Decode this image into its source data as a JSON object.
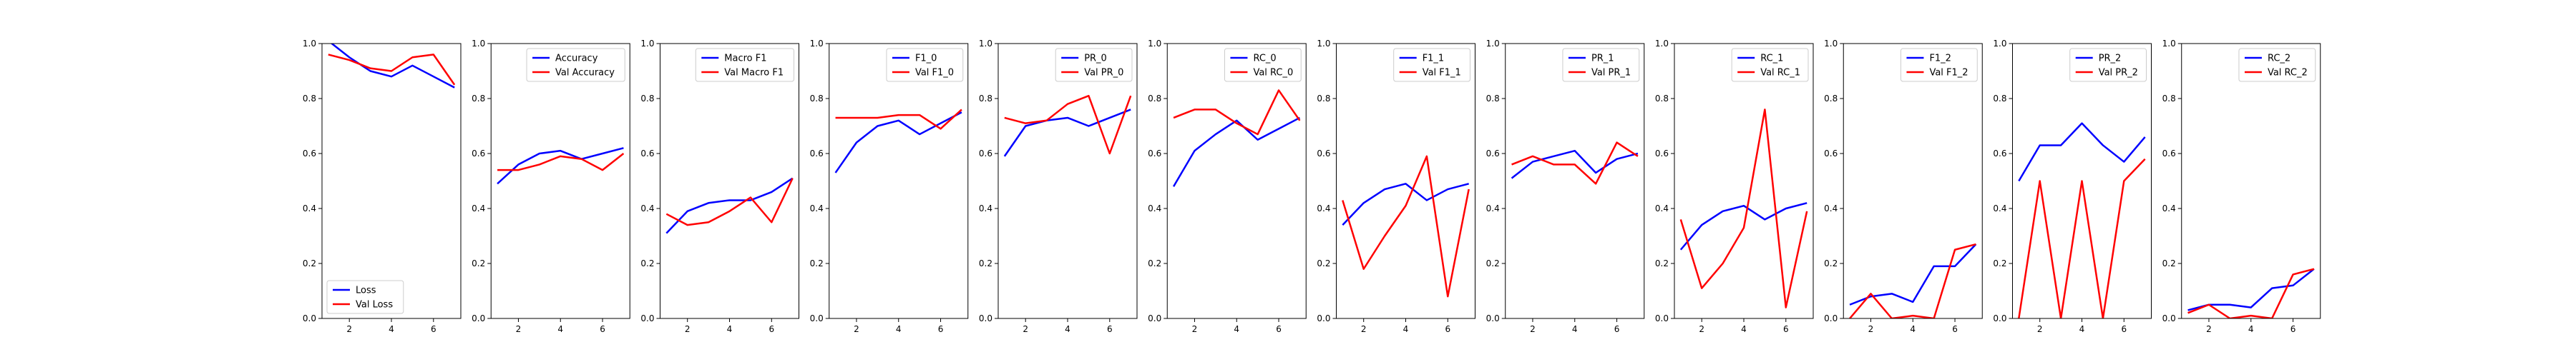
{
  "colors": {
    "train": "#0000ff",
    "val": "#ff0000"
  },
  "chart_data": [
    {
      "type": "line",
      "legend": "bottom-left",
      "ylim": [
        0,
        1.0
      ],
      "xlim": [
        0.7,
        7.3
      ],
      "x": [
        1,
        2,
        3,
        4,
        5,
        6,
        7
      ],
      "series": [
        {
          "name": "Loss",
          "values": [
            1.01,
            0.95,
            0.9,
            0.88,
            0.92,
            0.88,
            0.84
          ]
        },
        {
          "name": "Val Loss",
          "values": [
            0.96,
            0.94,
            0.91,
            0.9,
            0.95,
            0.96,
            0.85
          ]
        }
      ]
    },
    {
      "type": "line",
      "legend": "upper-right",
      "ylim": [
        0,
        1.0
      ],
      "xlim": [
        0.7,
        7.3
      ],
      "x": [
        1,
        2,
        3,
        4,
        5,
        6,
        7
      ],
      "series": [
        {
          "name": "Accuracy",
          "values": [
            0.49,
            0.56,
            0.6,
            0.61,
            0.58,
            0.6,
            0.62
          ]
        },
        {
          "name": "Val Accuracy",
          "values": [
            0.54,
            0.54,
            0.56,
            0.59,
            0.58,
            0.54,
            0.6
          ]
        }
      ]
    },
    {
      "type": "line",
      "legend": "upper-right",
      "ylim": [
        0,
        1.0
      ],
      "xlim": [
        0.7,
        7.3
      ],
      "x": [
        1,
        2,
        3,
        4,
        5,
        6,
        7
      ],
      "series": [
        {
          "name": "Macro F1",
          "values": [
            0.31,
            0.39,
            0.42,
            0.43,
            0.43,
            0.46,
            0.51
          ]
        },
        {
          "name": "Val Macro F1",
          "values": [
            0.38,
            0.34,
            0.35,
            0.39,
            0.44,
            0.35,
            0.51
          ]
        }
      ]
    },
    {
      "type": "line",
      "legend": "upper-right",
      "ylim": [
        0,
        1.0
      ],
      "xlim": [
        0.7,
        7.3
      ],
      "x": [
        1,
        2,
        3,
        4,
        5,
        6,
        7
      ],
      "series": [
        {
          "name": "F1_0",
          "values": [
            0.53,
            0.64,
            0.7,
            0.72,
            0.67,
            0.71,
            0.75
          ]
        },
        {
          "name": "Val F1_0",
          "values": [
            0.73,
            0.73,
            0.73,
            0.74,
            0.74,
            0.69,
            0.76
          ]
        }
      ]
    },
    {
      "type": "line",
      "legend": "upper-right",
      "ylim": [
        0,
        1.0
      ],
      "xlim": [
        0.7,
        7.3
      ],
      "x": [
        1,
        2,
        3,
        4,
        5,
        6,
        7
      ],
      "series": [
        {
          "name": "PR_0",
          "values": [
            0.59,
            0.7,
            0.72,
            0.73,
            0.7,
            0.73,
            0.76
          ]
        },
        {
          "name": "Val PR_0",
          "values": [
            0.73,
            0.71,
            0.72,
            0.78,
            0.81,
            0.6,
            0.81
          ]
        }
      ]
    },
    {
      "type": "line",
      "legend": "upper-right",
      "ylim": [
        0,
        1.0
      ],
      "xlim": [
        0.7,
        7.3
      ],
      "x": [
        1,
        2,
        3,
        4,
        5,
        6,
        7
      ],
      "series": [
        {
          "name": "RC_0",
          "values": [
            0.48,
            0.61,
            0.67,
            0.72,
            0.65,
            0.69,
            0.73
          ]
        },
        {
          "name": "Val RC_0",
          "values": [
            0.73,
            0.76,
            0.76,
            0.71,
            0.67,
            0.83,
            0.72
          ]
        }
      ]
    },
    {
      "type": "line",
      "legend": "upper-right",
      "ylim": [
        0,
        1.0
      ],
      "xlim": [
        0.7,
        7.3
      ],
      "x": [
        1,
        2,
        3,
        4,
        5,
        6,
        7
      ],
      "series": [
        {
          "name": "F1_1",
          "values": [
            0.34,
            0.42,
            0.47,
            0.49,
            0.43,
            0.47,
            0.49
          ]
        },
        {
          "name": "Val F1_1",
          "values": [
            0.43,
            0.18,
            0.3,
            0.41,
            0.59,
            0.08,
            0.47
          ]
        }
      ]
    },
    {
      "type": "line",
      "legend": "upper-right",
      "ylim": [
        0,
        1.0
      ],
      "xlim": [
        0.7,
        7.3
      ],
      "x": [
        1,
        2,
        3,
        4,
        5,
        6,
        7
      ],
      "series": [
        {
          "name": "PR_1",
          "values": [
            0.51,
            0.57,
            0.59,
            0.61,
            0.53,
            0.58,
            0.6
          ]
        },
        {
          "name": "Val PR_1",
          "values": [
            0.56,
            0.59,
            0.56,
            0.56,
            0.49,
            0.64,
            0.59
          ]
        }
      ]
    },
    {
      "type": "line",
      "legend": "upper-right",
      "ylim": [
        0,
        1.0
      ],
      "xlim": [
        0.7,
        7.3
      ],
      "x": [
        1,
        2,
        3,
        4,
        5,
        6,
        7
      ],
      "series": [
        {
          "name": "RC_1",
          "values": [
            0.25,
            0.34,
            0.39,
            0.41,
            0.36,
            0.4,
            0.42
          ]
        },
        {
          "name": "Val RC_1",
          "values": [
            0.36,
            0.11,
            0.2,
            0.33,
            0.76,
            0.04,
            0.39
          ]
        }
      ]
    },
    {
      "type": "line",
      "legend": "upper-right",
      "ylim": [
        0,
        1.0
      ],
      "xlim": [
        0.7,
        7.3
      ],
      "x": [
        1,
        2,
        3,
        4,
        5,
        6,
        7
      ],
      "series": [
        {
          "name": "F1_2",
          "values": [
            0.05,
            0.08,
            0.09,
            0.06,
            0.19,
            0.19,
            0.27
          ]
        },
        {
          "name": "Val F1_2",
          "values": [
            0.0,
            0.09,
            0.0,
            0.01,
            0.0,
            0.25,
            0.27
          ]
        }
      ]
    },
    {
      "type": "line",
      "legend": "upper-right",
      "ylim": [
        0,
        1.0
      ],
      "xlim": [
        0.7,
        7.3
      ],
      "x": [
        1,
        2,
        3,
        4,
        5,
        6,
        7
      ],
      "series": [
        {
          "name": "PR_2",
          "values": [
            0.5,
            0.63,
            0.63,
            0.71,
            0.63,
            0.57,
            0.66
          ]
        },
        {
          "name": "Val PR_2",
          "values": [
            0.0,
            0.5,
            0.0,
            0.5,
            0.0,
            0.5,
            0.58
          ]
        }
      ]
    },
    {
      "type": "line",
      "legend": "upper-right",
      "ylim": [
        0,
        1.0
      ],
      "xlim": [
        0.7,
        7.3
      ],
      "x": [
        1,
        2,
        3,
        4,
        5,
        6,
        7
      ],
      "series": [
        {
          "name": "RC_2",
          "values": [
            0.03,
            0.05,
            0.05,
            0.04,
            0.11,
            0.12,
            0.18
          ]
        },
        {
          "name": "Val RC_2",
          "values": [
            0.02,
            0.05,
            0.0,
            0.01,
            0.0,
            0.16,
            0.18
          ]
        }
      ]
    }
  ]
}
